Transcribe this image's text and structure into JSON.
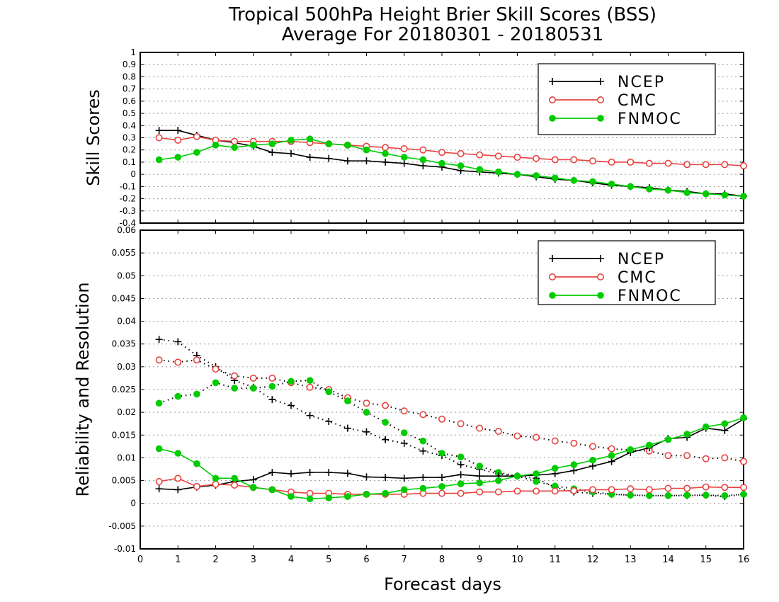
{
  "title_line1": "Tropical 500hPa Height Brier Skill Scores (BSS)",
  "title_line2": "Average For 20180301 - 20180531",
  "xlabel": "Forecast days",
  "colors": {
    "NCEP": "#000000",
    "CMC": "#e8433f",
    "FNMOC": "#00cc00"
  },
  "chart_data": [
    {
      "type": "line",
      "ylabel": "Skill Scores",
      "xlim": [
        0,
        16
      ],
      "ylim": [
        -0.4,
        1
      ],
      "grid": true,
      "legend_position": "top-right",
      "x": [
        0.5,
        1,
        1.5,
        2,
        2.5,
        3,
        3.5,
        4,
        4.5,
        5,
        5.5,
        6,
        6.5,
        7,
        7.5,
        8,
        8.5,
        9,
        9.5,
        10,
        10.5,
        11,
        11.5,
        12,
        12.5,
        13,
        13.5,
        14,
        14.5,
        15,
        15.5,
        16
      ],
      "x_ticks": [
        "0",
        "1",
        "2",
        "3",
        "4",
        "5",
        "6",
        "7",
        "8",
        "9",
        "10",
        "11",
        "12",
        "13",
        "14",
        "15",
        "16"
      ],
      "y_ticks": [
        "-0.4",
        "-0.3",
        "-0.2",
        "-0.1",
        "0",
        "0.1",
        "0.2",
        "0.3",
        "0.4",
        "0.5",
        "0.6",
        "0.7",
        "0.8",
        "0.9",
        "1"
      ],
      "series": [
        {
          "name": "NCEP",
          "style": "solid",
          "marker": "plus",
          "values": [
            0.36,
            0.36,
            0.32,
            0.28,
            0.26,
            0.23,
            0.18,
            0.17,
            0.14,
            0.13,
            0.11,
            0.11,
            0.1,
            0.09,
            0.07,
            0.06,
            0.03,
            0.02,
            0.01,
            0.0,
            -0.02,
            -0.04,
            -0.05,
            -0.07,
            -0.09,
            -0.1,
            -0.11,
            -0.13,
            -0.14,
            -0.16,
            -0.16,
            -0.18
          ]
        },
        {
          "name": "CMC",
          "style": "solid",
          "marker": "circle-open",
          "values": [
            0.3,
            0.28,
            0.31,
            0.28,
            0.27,
            0.27,
            0.27,
            0.27,
            0.26,
            0.25,
            0.24,
            0.23,
            0.22,
            0.21,
            0.2,
            0.18,
            0.17,
            0.16,
            0.15,
            0.14,
            0.13,
            0.12,
            0.12,
            0.11,
            0.1,
            0.1,
            0.09,
            0.09,
            0.08,
            0.08,
            0.08,
            0.07
          ]
        },
        {
          "name": "FNMOC",
          "style": "solid",
          "marker": "circle-filled",
          "values": [
            0.12,
            0.14,
            0.18,
            0.24,
            0.22,
            0.24,
            0.25,
            0.28,
            0.29,
            0.25,
            0.24,
            0.2,
            0.17,
            0.14,
            0.12,
            0.09,
            0.07,
            0.04,
            0.02,
            0.0,
            -0.01,
            -0.03,
            -0.05,
            -0.06,
            -0.08,
            -0.1,
            -0.12,
            -0.13,
            -0.15,
            -0.16,
            -0.17,
            -0.18
          ]
        }
      ]
    },
    {
      "type": "line",
      "ylabel": "Reliability and Resolution",
      "xlim": [
        0,
        16
      ],
      "ylim": [
        -0.01,
        0.06
      ],
      "grid": true,
      "legend_position": "top-right",
      "x": [
        0.5,
        1,
        1.5,
        2,
        2.5,
        3,
        3.5,
        4,
        4.5,
        5,
        5.5,
        6,
        6.5,
        7,
        7.5,
        8,
        8.5,
        9,
        9.5,
        10,
        10.5,
        11,
        11.5,
        12,
        12.5,
        13,
        13.5,
        14,
        14.5,
        15,
        15.5,
        16
      ],
      "x_ticks": [
        "0",
        "1",
        "2",
        "3",
        "4",
        "5",
        "6",
        "7",
        "8",
        "9",
        "10",
        "11",
        "12",
        "13",
        "14",
        "15",
        "16"
      ],
      "y_ticks": [
        "-0.01",
        "-0.005",
        "0",
        "0.005",
        "0.01",
        "0.015",
        "0.02",
        "0.025",
        "0.03",
        "0.035",
        "0.04",
        "0.045",
        "0.05",
        "0.055",
        "0.06"
      ],
      "series": [
        {
          "name": "NCEP",
          "style": "dotted",
          "marker": "plus",
          "values": [
            0.036,
            0.0355,
            0.0325,
            0.03,
            0.027,
            0.0255,
            0.0228,
            0.0215,
            0.0193,
            0.018,
            0.0165,
            0.0157,
            0.014,
            0.0132,
            0.0115,
            0.0105,
            0.0085,
            0.0075,
            0.0065,
            0.006,
            0.0055,
            0.0035,
            0.0025,
            0.0022,
            0.002,
            0.0018,
            0.0017,
            0.0017,
            0.0017,
            0.0018,
            0.0015,
            0.002
          ]
        },
        {
          "name": "CMC",
          "style": "dotted",
          "marker": "circle-open",
          "values": [
            0.0315,
            0.031,
            0.0315,
            0.0295,
            0.028,
            0.0275,
            0.0275,
            0.0265,
            0.0255,
            0.025,
            0.0232,
            0.022,
            0.0215,
            0.0203,
            0.0195,
            0.0185,
            0.0175,
            0.0165,
            0.0158,
            0.0148,
            0.0145,
            0.0137,
            0.0132,
            0.0125,
            0.012,
            0.0117,
            0.0115,
            0.0105,
            0.0105,
            0.0098,
            0.01,
            0.0092
          ]
        },
        {
          "name": "FNMOC",
          "style": "dotted",
          "marker": "circle-filled",
          "values": [
            0.022,
            0.0235,
            0.024,
            0.0265,
            0.0253,
            0.0253,
            0.0257,
            0.0268,
            0.027,
            0.0245,
            0.0225,
            0.02,
            0.0178,
            0.0155,
            0.0137,
            0.011,
            0.0102,
            0.0082,
            0.0068,
            0.006,
            0.0048,
            0.0038,
            0.0032,
            0.0025,
            0.002,
            0.0018,
            0.0017,
            0.0017,
            0.0018,
            0.0018,
            0.0017,
            0.002
          ]
        },
        {
          "name": "NCEP",
          "style": "solid",
          "marker": "plus",
          "values": [
            0.0032,
            0.003,
            0.0036,
            0.004,
            0.0048,
            0.0052,
            0.0068,
            0.0065,
            0.0068,
            0.0068,
            0.0066,
            0.0058,
            0.0057,
            0.0055,
            0.0057,
            0.0057,
            0.0063,
            0.006,
            0.006,
            0.006,
            0.0062,
            0.0065,
            0.0072,
            0.0082,
            0.0092,
            0.0112,
            0.0122,
            0.0142,
            0.0145,
            0.0165,
            0.016,
            0.0185
          ]
        },
        {
          "name": "CMC",
          "style": "solid",
          "marker": "circle-open",
          "values": [
            0.0048,
            0.0055,
            0.0037,
            0.0042,
            0.004,
            0.0035,
            0.003,
            0.0025,
            0.0022,
            0.0022,
            0.002,
            0.002,
            0.002,
            0.002,
            0.0022,
            0.0022,
            0.0022,
            0.0025,
            0.0025,
            0.0027,
            0.0027,
            0.0027,
            0.0028,
            0.003,
            0.003,
            0.0032,
            0.003,
            0.0033,
            0.0033,
            0.0036,
            0.0035,
            0.0035
          ]
        },
        {
          "name": "FNMOC",
          "style": "solid",
          "marker": "circle-filled",
          "values": [
            0.012,
            0.011,
            0.0087,
            0.0055,
            0.0055,
            0.0035,
            0.003,
            0.0015,
            0.001,
            0.0012,
            0.0015,
            0.002,
            0.0022,
            0.003,
            0.0033,
            0.0037,
            0.0043,
            0.0045,
            0.005,
            0.006,
            0.0065,
            0.0077,
            0.0085,
            0.0095,
            0.0105,
            0.0118,
            0.0128,
            0.014,
            0.0152,
            0.0168,
            0.0175,
            0.0188
          ]
        }
      ]
    }
  ]
}
